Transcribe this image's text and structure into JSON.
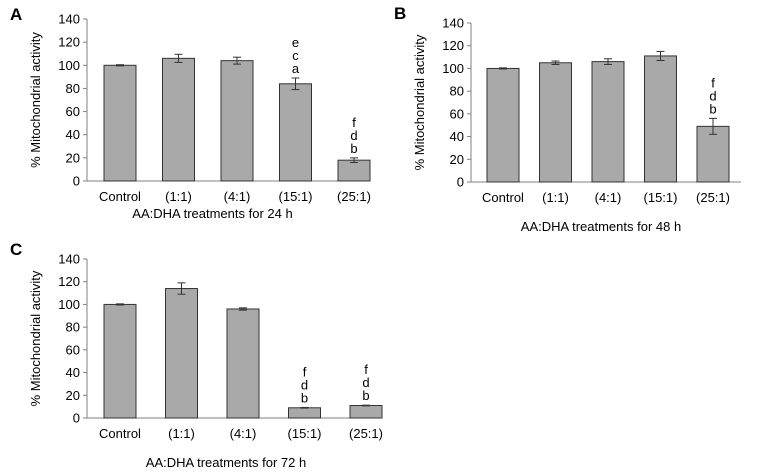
{
  "chart_data": [
    {
      "panel": "A",
      "type": "bar",
      "categories": [
        "Control",
        "(1:1)",
        "(4:1)",
        "(15:1)",
        "(25:1)"
      ],
      "values": [
        100,
        106,
        104,
        84,
        18
      ],
      "errors": [
        0.5,
        3.5,
        3,
        5,
        2
      ],
      "annotations": [
        [],
        [],
        [],
        [
          "e",
          "c",
          "a"
        ],
        [
          "f",
          "d",
          "b"
        ]
      ],
      "xlabel": "AA:DHA treatments for 24 h",
      "ylabel": "% Mitochondrial activity",
      "ylim": [
        0,
        140
      ],
      "yticks": [
        0,
        20,
        40,
        60,
        80,
        100,
        120,
        140
      ],
      "bar_color": "#a9a9a9"
    },
    {
      "panel": "B",
      "type": "bar",
      "categories": [
        "Control",
        "(1:1)",
        "(4:1)",
        "(15:1)",
        "(25:1)"
      ],
      "values": [
        100,
        105,
        106,
        111,
        49
      ],
      "errors": [
        0.5,
        1.5,
        2.5,
        4,
        7
      ],
      "annotations": [
        [],
        [],
        [],
        [],
        [
          "f",
          "d",
          "b"
        ]
      ],
      "xlabel": "AA:DHA treatments for 48 h",
      "ylabel": "% Mitochondrial activity",
      "ylim": [
        0,
        140
      ],
      "yticks": [
        0,
        20,
        40,
        60,
        80,
        100,
        120,
        140
      ],
      "bar_color": "#a9a9a9"
    },
    {
      "panel": "C",
      "type": "bar",
      "categories": [
        "Control",
        "(1:1)",
        "(4:1)",
        "(15:1)",
        "(25:1)"
      ],
      "values": [
        100,
        114,
        96,
        9,
        11
      ],
      "errors": [
        0.5,
        5,
        1,
        0.3,
        0.3
      ],
      "annotations": [
        [],
        [],
        [],
        [
          "f",
          "d",
          "b"
        ],
        [
          "f",
          "d",
          "b"
        ]
      ],
      "xlabel": "AA:DHA treatments for 72 h",
      "ylabel": "% Mitochondrial activity",
      "ylim": [
        0,
        140
      ],
      "yticks": [
        0,
        20,
        40,
        60,
        80,
        100,
        120,
        140
      ],
      "bar_color": "#a9a9a9"
    }
  ]
}
